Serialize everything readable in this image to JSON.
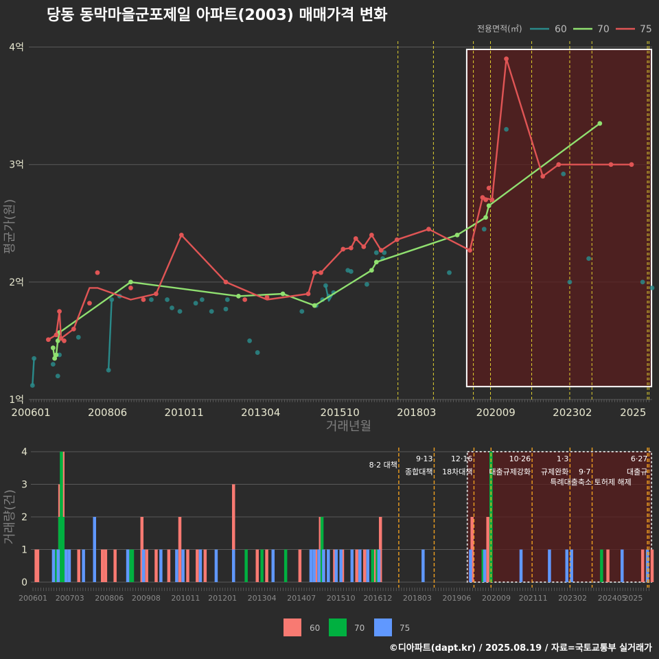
{
  "title": "당동 동막마을군포제일 아파트(2003) 매매가격 변화",
  "footer": "©디아파트(dapt.kr) / 2025.08.19 / 자료=국토교통부 실거래가",
  "colors": {
    "background": "#2b2b2b",
    "grid": "#5a5a5a",
    "s60": "#2a8a8a",
    "s70": "#90e070",
    "s75": "#e05555",
    "bar60": "#f87a72",
    "bar70": "#00b040",
    "bar75": "#6098ff",
    "policy_line": "#e0d030",
    "policy_line_bottom": "#f0a020",
    "highlight_fill": "#5a1e1e"
  },
  "chart_data": [
    {
      "type": "line",
      "title": "당동 동막마을군포제일 아파트(2003) 매매가격 변화",
      "xlabel": "거래년월",
      "ylabel": "평균가(원)",
      "legend_title": "전용면적(㎡)",
      "legend_position": "top-right",
      "x_ticks": [
        "200601",
        "200806",
        "201011",
        "201304",
        "201510",
        "201803",
        "202009",
        "202302",
        "2025"
      ],
      "y_ticks": [
        {
          "v": 1,
          "label": "1억"
        },
        {
          "v": 2,
          "label": "2억"
        },
        {
          "v": 3,
          "label": "3억"
        },
        {
          "v": 4,
          "label": "4억"
        }
      ],
      "ylim": [
        1,
        4.05
      ],
      "xlim": [
        2006.0,
        2025.6
      ],
      "highlight_range": [
        2019.75,
        2025.58
      ],
      "highlight_yrange": [
        1.11,
        3.98
      ],
      "policy_lines": [
        2017.58,
        2018.7,
        2019.96,
        2020.5,
        2021.8,
        2023.0,
        2023.7,
        2025.45,
        2025.5
      ],
      "series": [
        {
          "name": "60",
          "color_key": "s60",
          "x": [
            2006.05,
            2006.1,
            2006.7,
            2006.75,
            2006.85,
            2006.9,
            2007.5,
            2008.45,
            2008.55,
            2008.8,
            2009.8,
            2010.3,
            2010.45,
            2010.7,
            2011.2,
            2011.4,
            2011.7,
            2012.15,
            2012.2,
            2012.9,
            2013.15,
            2014.55,
            2015.0,
            2015.2,
            2015.3,
            2015.4,
            2015.55,
            2016.0,
            2016.1,
            2016.6,
            2016.9,
            2017.1,
            2017.15,
            2019.2,
            2020.3,
            2021.0,
            2022.8,
            2023.0,
            2023.6,
            2025.3,
            2025.6
          ],
          "y": [
            1.12,
            1.35,
            1.3,
            1.35,
            1.2,
            1.38,
            1.53,
            1.25,
            1.85,
            1.88,
            1.85,
            1.85,
            1.78,
            1.75,
            1.82,
            1.85,
            1.75,
            1.77,
            1.85,
            1.5,
            1.4,
            1.75,
            1.8,
            1.85,
            1.97,
            1.88,
            1.91,
            2.1,
            2.09,
            1.98,
            2.25,
            2.2,
            2.25,
            2.08,
            2.45,
            3.3,
            2.92,
            2.0,
            2.2,
            2.0,
            1.95
          ],
          "line_x": [
            2006.05,
            2006.1
          ],
          "line_y": [
            1.12,
            1.35
          ],
          "line2_x": [
            2008.45,
            2008.55
          ],
          "line2_y": [
            1.25,
            1.85
          ],
          "line3_x": [
            2015.3,
            2015.4,
            2015.55
          ],
          "line3_y": [
            1.97,
            1.84,
            1.91
          ]
        },
        {
          "name": "70",
          "color_key": "s70",
          "x": [
            2006.7,
            2006.75,
            2006.8,
            2006.85,
            2006.9,
            2009.15,
            2012.55,
            2013.95,
            2014.95,
            2016.75,
            2016.9,
            2019.45,
            2020.35,
            2020.45,
            2023.95
          ],
          "y": [
            1.44,
            1.35,
            1.38,
            1.5,
            1.57,
            2.0,
            1.88,
            1.9,
            1.8,
            2.1,
            2.17,
            2.4,
            2.55,
            2.65,
            3.35
          ]
        },
        {
          "name": "75",
          "color_key": "s75",
          "x": [
            2006.55,
            2006.8,
            2006.9,
            2006.95,
            2007.05,
            2007.35,
            2007.85,
            2008.1,
            2009.15,
            2009.55,
            2009.95,
            2010.75,
            2012.15,
            2012.75,
            2013.45,
            2014.75,
            2014.95,
            2015.15,
            2015.85,
            2016.1,
            2016.25,
            2016.5,
            2016.75,
            2017.05,
            2017.55,
            2018.55,
            2019.85,
            2020.25,
            2020.35,
            2020.45,
            2020.55,
            2021.0,
            2022.15,
            2022.65,
            2024.3,
            2024.95
          ],
          "y": [
            1.51,
            1.55,
            1.75,
            1.52,
            1.5,
            1.6,
            1.82,
            2.08,
            1.95,
            1.85,
            1.9,
            2.4,
            2.0,
            1.85,
            1.87,
            1.9,
            2.08,
            2.08,
            2.28,
            2.29,
            2.37,
            2.3,
            2.4,
            2.27,
            2.36,
            2.45,
            2.27,
            2.72,
            2.7,
            2.8,
            2.7,
            3.9,
            2.9,
            3.0,
            3.0,
            3.0
          ],
          "line_x": [
            2006.55,
            2006.8,
            2006.9,
            2006.95,
            2007.35,
            2007.85,
            2008.1,
            2009.15,
            2009.95,
            2010.75,
            2012.15,
            2013.45,
            2014.75,
            2014.95,
            2015.15,
            2015.85,
            2016.1,
            2016.25,
            2016.5,
            2016.75,
            2017.05,
            2017.55,
            2018.55,
            2019.85,
            2020.25,
            2020.55,
            2021.0,
            2022.15,
            2022.65,
            2024.95
          ],
          "line_y": [
            1.51,
            1.55,
            1.75,
            1.52,
            1.6,
            1.95,
            1.95,
            1.85,
            1.9,
            2.4,
            2.0,
            1.85,
            1.9,
            2.08,
            2.08,
            2.28,
            2.29,
            2.37,
            2.3,
            2.4,
            2.27,
            2.36,
            2.45,
            2.27,
            2.72,
            2.7,
            3.9,
            2.9,
            3.0,
            3.0
          ]
        }
      ]
    },
    {
      "type": "bar",
      "xlabel": "",
      "ylabel": "거래량(건)",
      "ylim": [
        0,
        4
      ],
      "y_ticks": [
        0,
        1,
        2,
        3,
        4
      ],
      "x_ticks": [
        "200601",
        "200703",
        "200806",
        "200908",
        "201011",
        "201201",
        "201304",
        "201407",
        "201510",
        "201612",
        "201803",
        "201906",
        "202009",
        "202111",
        "202302",
        "202405",
        "2025"
      ],
      "xlim": [
        2006.0,
        2025.6
      ],
      "highlight_range": [
        2019.75,
        2025.58
      ],
      "policy_lines": [
        2017.58,
        2018.7,
        2019.96,
        2020.5,
        2021.8,
        2023.0,
        2023.7,
        2025.45,
        2025.5
      ],
      "annotations": [
        {
          "x": 2017.58,
          "row": 1,
          "text": "8·2 대책",
          "anchor": "end"
        },
        {
          "x": 2018.7,
          "row": 0,
          "text": "9·13",
          "anchor": "end"
        },
        {
          "x": 2018.7,
          "row": 2,
          "text": "종합대책",
          "anchor": "end"
        },
        {
          "x": 2019.96,
          "row": 0,
          "text": "12·16",
          "anchor": "end"
        },
        {
          "x": 2019.96,
          "row": 2,
          "text": "18차대책",
          "anchor": "end"
        },
        {
          "x": 2021.8,
          "row": 0,
          "text": "10·26",
          "anchor": "end"
        },
        {
          "x": 2021.8,
          "row": 2,
          "text": "대출규제강화",
          "anchor": "end"
        },
        {
          "x": 2023.0,
          "row": 0,
          "text": "1·3",
          "anchor": "end"
        },
        {
          "x": 2023.0,
          "row": 2,
          "text": "규제완화",
          "anchor": "end"
        },
        {
          "x": 2023.7,
          "row": 2,
          "text": "9·7",
          "anchor": "end"
        },
        {
          "x": 2023.7,
          "row": 3,
          "text": "특례대출축소 토허제 해제",
          "anchor": "middle"
        },
        {
          "x": 2025.5,
          "row": 0,
          "text": "6·27",
          "anchor": "end"
        },
        {
          "x": 2025.5,
          "row": 2,
          "text": "대출규",
          "anchor": "end"
        }
      ],
      "series": [
        {
          "name": "60",
          "color_key": "bar60",
          "x": [
            2006.1,
            2006.15,
            2006.85,
            2006.95,
            2007.05,
            2007.45,
            2008.2,
            2008.3,
            2008.6,
            2009.45,
            2009.6,
            2009.9,
            2010.3,
            2010.65,
            2010.9,
            2011.2,
            2011.45,
            2012.35,
            2013.1,
            2013.4,
            2014.45,
            2014.95,
            2015.1,
            2015.2,
            2015.55,
            2015.8,
            2016.25,
            2016.5,
            2016.8,
            2016.9,
            2017.0,
            2019.9,
            2020.4,
            2024.2,
            2025.3,
            2025.6
          ],
          "y": [
            1,
            1,
            3,
            4,
            1,
            1,
            1,
            1,
            1,
            2,
            1,
            1,
            1,
            2,
            1,
            1,
            1,
            3,
            1,
            1,
            1,
            1,
            2,
            1,
            1,
            1,
            1,
            1,
            1,
            1,
            2,
            2,
            2,
            1,
            1,
            1
          ]
        },
        {
          "name": "70",
          "color_key": "bar70",
          "x": [
            2006.75,
            2006.85,
            2006.9,
            2006.95,
            2007.0,
            2009.1,
            2009.15,
            2012.75,
            2013.25,
            2014.0,
            2015.15,
            2016.75,
            2016.9,
            2020.25,
            2020.5,
            2024.0
          ],
          "y": [
            1,
            2,
            4,
            2,
            1,
            1,
            1,
            1,
            1,
            1,
            2,
            1,
            1,
            1,
            4,
            1
          ]
        },
        {
          "name": "75",
          "color_key": "bar75",
          "x": [
            2006.65,
            2006.8,
            2007.05,
            2007.15,
            2007.6,
            2007.95,
            2009.0,
            2009.5,
            2010.05,
            2010.55,
            2010.75,
            2011.3,
            2011.8,
            2012.35,
            2013.6,
            2014.8,
            2014.9,
            2015.05,
            2015.2,
            2015.35,
            2015.6,
            2015.75,
            2016.1,
            2016.35,
            2016.6,
            2016.95,
            2018.35,
            2019.85,
            2020.3,
            2021.45,
            2022.35,
            2022.9,
            2023.05,
            2024.65,
            2025.45
          ],
          "y": [
            1,
            1,
            1,
            1,
            1,
            2,
            1,
            1,
            1,
            1,
            1,
            1,
            1,
            1,
            1,
            1,
            1,
            1,
            1,
            1,
            1,
            1,
            1,
            1,
            1,
            1,
            1,
            1,
            1,
            1,
            1,
            1,
            1,
            1,
            1
          ]
        }
      ]
    }
  ]
}
